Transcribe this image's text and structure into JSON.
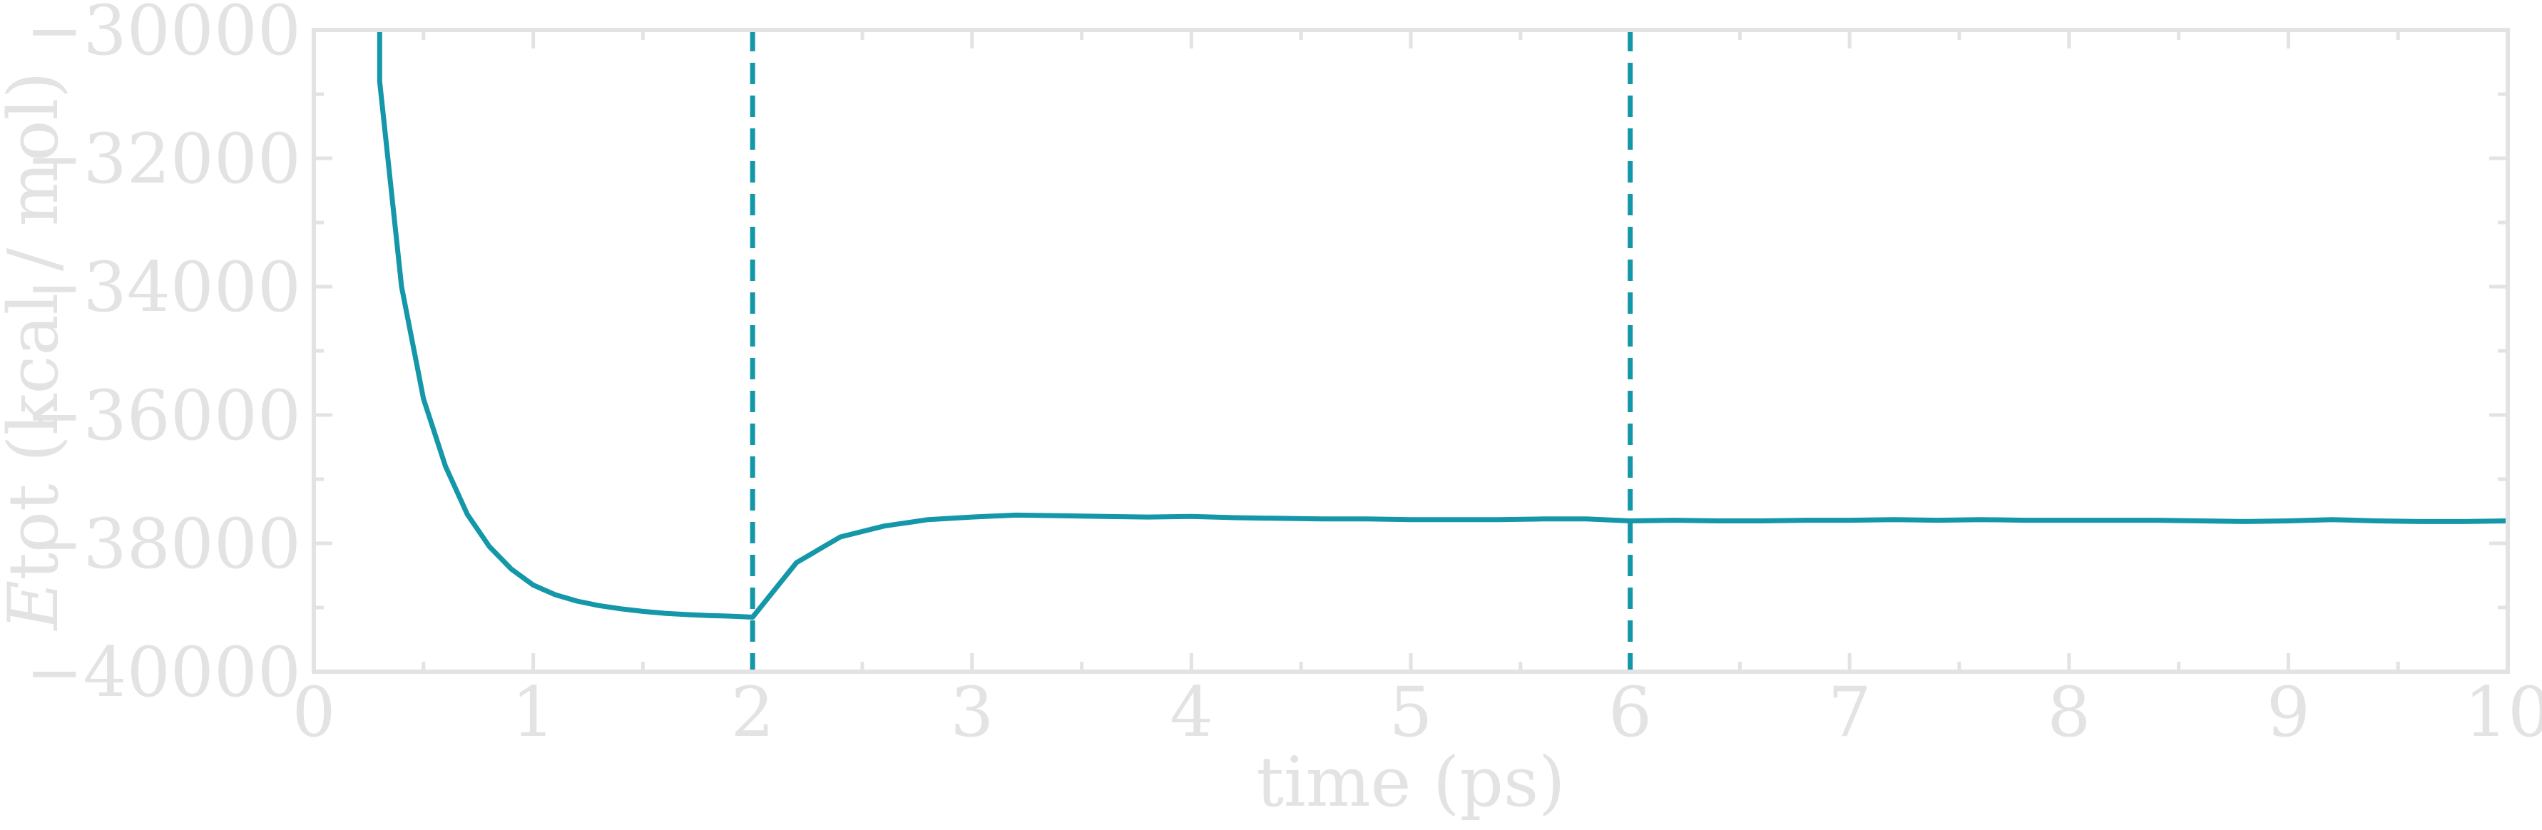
{
  "chart_data": {
    "type": "line",
    "xlabel": "time (ps)",
    "ylabel_italic": "E",
    "ylabel_rest": "tot (kcal / mol)",
    "xlim": [
      0,
      10
    ],
    "ylim": [
      -40000,
      -30000
    ],
    "x_ticks": [
      0,
      1,
      2,
      3,
      4,
      5,
      6,
      7,
      8,
      9,
      10
    ],
    "x_tick_labels": [
      "0",
      "1",
      "2",
      "3",
      "4",
      "5",
      "6",
      "7",
      "8",
      "9",
      "10"
    ],
    "y_ticks": [
      -30000,
      -32000,
      -34000,
      -36000,
      -38000,
      -40000
    ],
    "y_tick_labels": [
      "−30000",
      "−32000",
      "−34000",
      "−36000",
      "−38000",
      "−40000"
    ],
    "grid": false,
    "vertical_markers": [
      2,
      6
    ],
    "colors": {
      "series": "#1497a8",
      "axis": "#e3e3e3"
    },
    "series": [
      {
        "x": [
          0.3,
          0.3,
          0.4,
          0.5,
          0.6,
          0.7,
          0.8,
          0.9,
          1.0,
          1.1,
          1.2,
          1.3,
          1.4,
          1.5,
          1.6,
          1.7,
          1.8,
          1.9,
          2.0,
          2.2,
          2.4,
          2.6,
          2.8,
          3.0,
          3.2,
          3.4,
          3.6,
          3.8,
          4.0,
          4.2,
          4.4,
          4.6,
          4.8,
          5.0,
          5.2,
          5.4,
          5.6,
          5.8,
          6.0,
          6.2,
          6.4,
          6.6,
          6.8,
          7.0,
          7.2,
          7.4,
          7.6,
          7.8,
          8.0,
          8.2,
          8.4,
          8.6,
          8.8,
          9.0,
          9.2,
          9.4,
          9.6,
          9.8,
          10.0
        ],
        "y": [
          -30000,
          -30800,
          -34000,
          -35750,
          -36800,
          -37550,
          -38050,
          -38400,
          -38650,
          -38800,
          -38900,
          -38970,
          -39020,
          -39060,
          -39090,
          -39110,
          -39125,
          -39135,
          -39150,
          -38300,
          -37900,
          -37730,
          -37630,
          -37590,
          -37560,
          -37570,
          -37580,
          -37590,
          -37580,
          -37600,
          -37610,
          -37620,
          -37620,
          -37630,
          -37630,
          -37630,
          -37620,
          -37620,
          -37650,
          -37640,
          -37650,
          -37650,
          -37640,
          -37640,
          -37630,
          -37640,
          -37630,
          -37640,
          -37640,
          -37640,
          -37640,
          -37650,
          -37660,
          -37650,
          -37630,
          -37650,
          -37660,
          -37660,
          -37650
        ]
      }
    ]
  }
}
